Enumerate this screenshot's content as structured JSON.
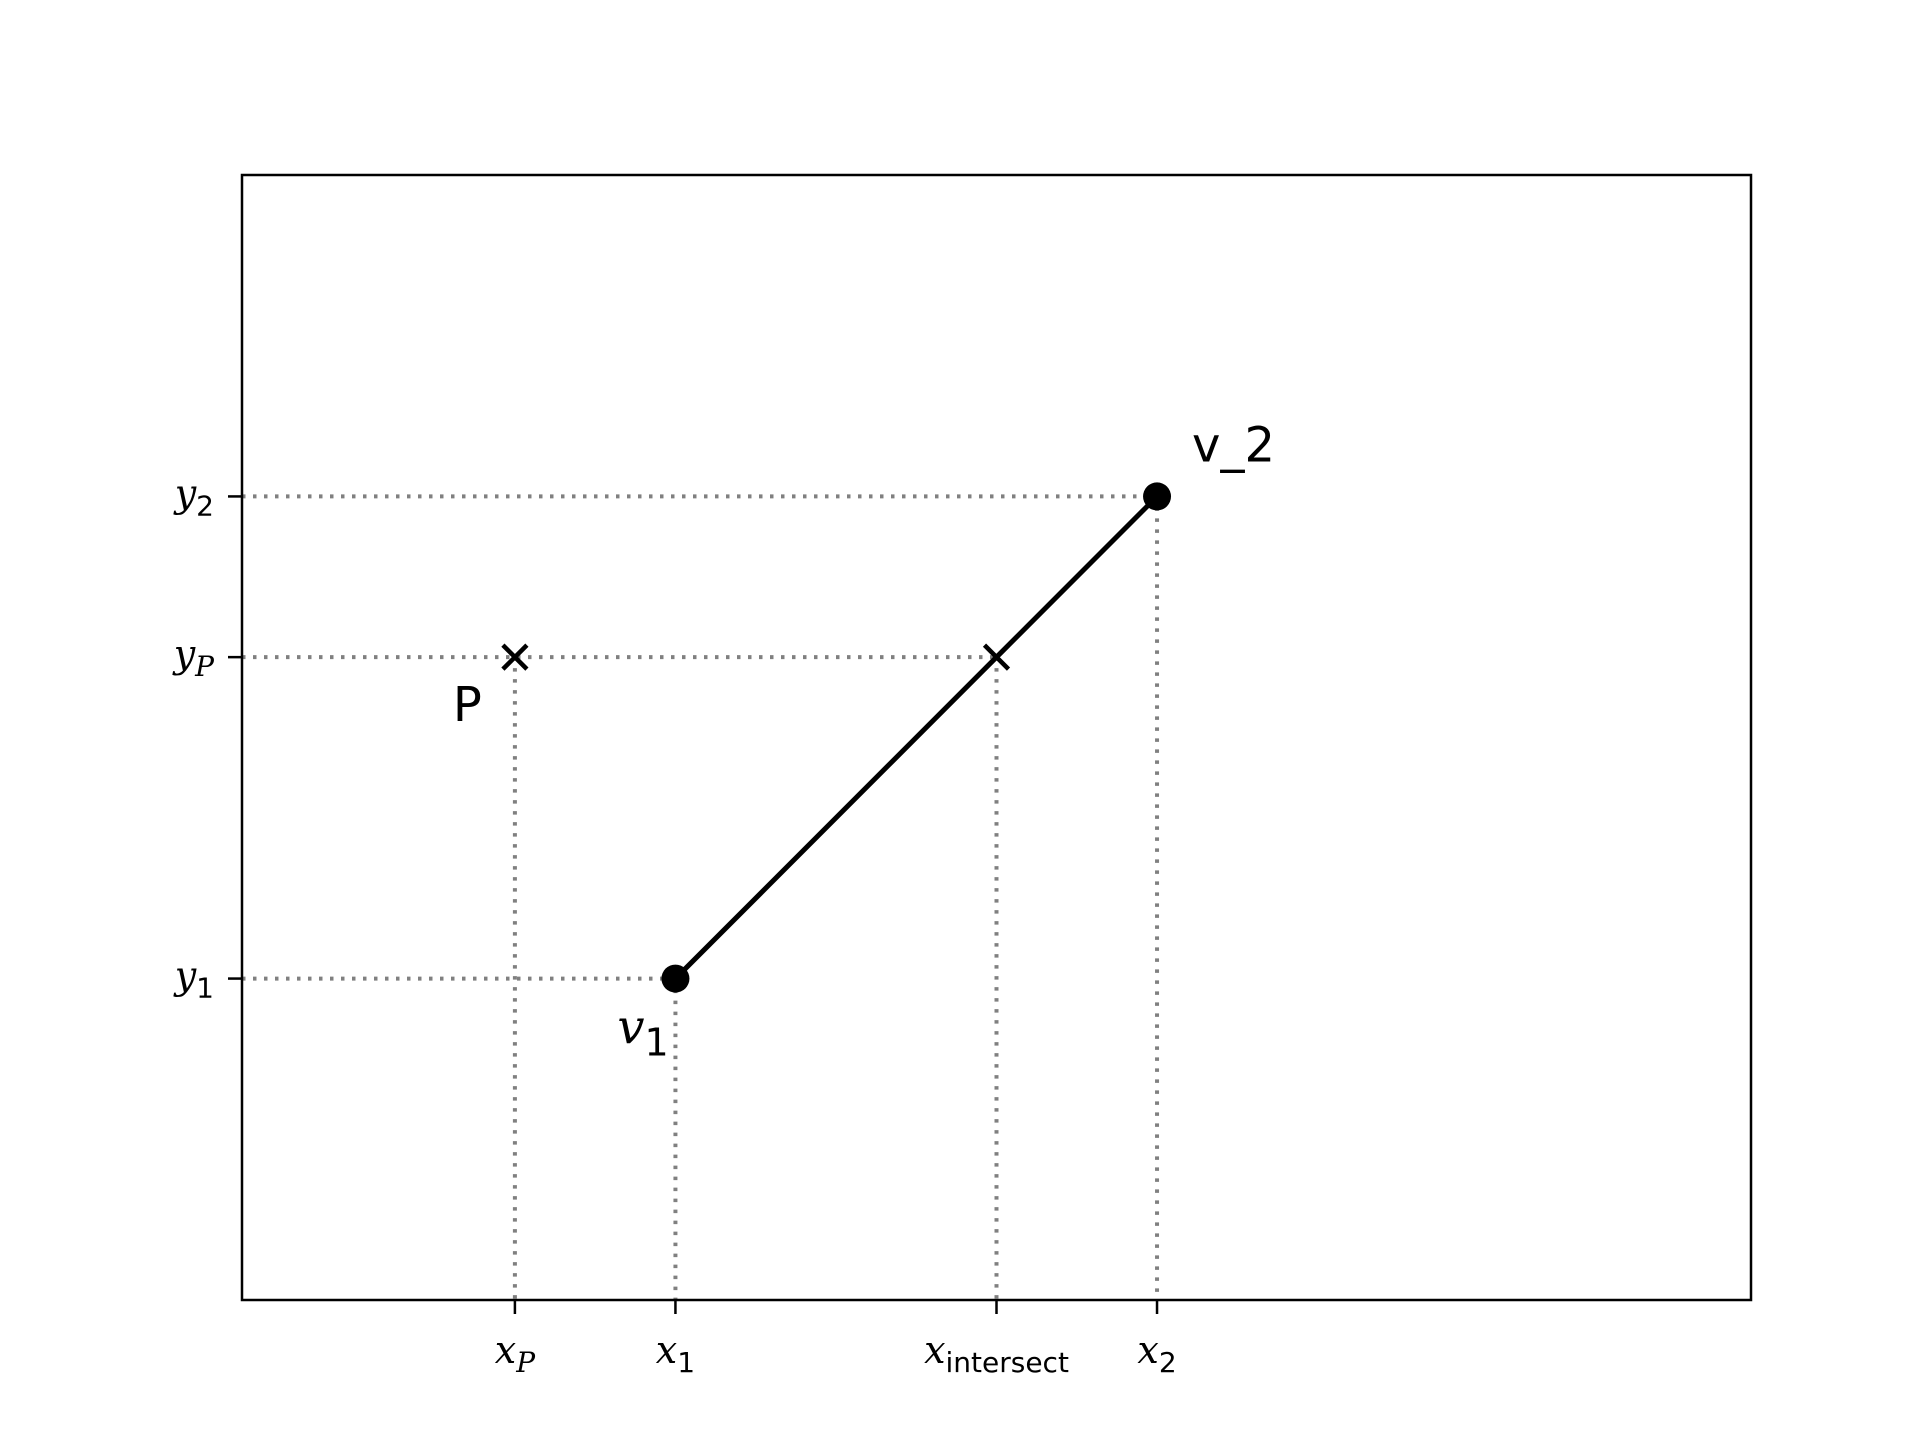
{
  "diagram": {
    "x_ticks": [
      {
        "id": "xp",
        "main": "x",
        "sub": "P",
        "sub_italic": true,
        "x": 1
      },
      {
        "id": "x1",
        "main": "x",
        "sub": "1",
        "sub_italic": false,
        "x": 2
      },
      {
        "id": "xi",
        "main": "x",
        "sub": "intersect",
        "sub_italic": false,
        "x": 4
      },
      {
        "id": "x2",
        "main": "x",
        "sub": "2",
        "sub_italic": false,
        "x": 5
      }
    ],
    "y_ticks": [
      {
        "id": "y1",
        "main": "y",
        "sub": "1",
        "sub_italic": false,
        "y": 2
      },
      {
        "id": "yp",
        "main": "y",
        "sub": "P",
        "sub_italic": true,
        "y": 4
      },
      {
        "id": "y2",
        "main": "y",
        "sub": "2",
        "sub_italic": false,
        "y": 5
      }
    ],
    "xlim": [
      -0.7,
      8.7
    ],
    "ylim": [
      0,
      7
    ],
    "segment": {
      "from": [
        2,
        2
      ],
      "to": [
        5,
        5
      ],
      "color": "#000000"
    },
    "vertices": [
      {
        "id": "v1",
        "x": 2,
        "y": 2,
        "label_main": "v",
        "label_sub": "1",
        "label_italic": true
      },
      {
        "id": "v2",
        "x": 5,
        "y": 5,
        "label": "v_2",
        "label_italic": false
      }
    ],
    "point_p": {
      "x": 1,
      "y": 4,
      "label": "P"
    },
    "intersection": {
      "x": 4,
      "y": 4
    },
    "guide_color": "#808080"
  }
}
